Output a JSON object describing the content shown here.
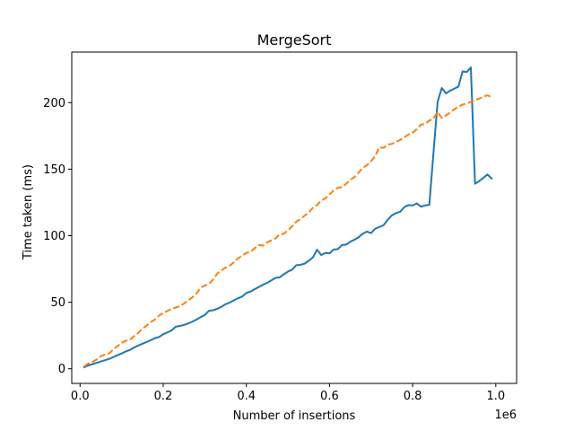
{
  "chart_data": {
    "type": "line",
    "title": "MergeSort",
    "xlabel": "Number of insertions",
    "ylabel": "Time taken (ms)",
    "x_offset_label": "1e6",
    "xlim": [
      -0.02,
      1.05
    ],
    "ylim": [
      -11,
      238
    ],
    "x_ticks": [
      0.0,
      0.2,
      0.4,
      0.6,
      0.8,
      1.0
    ],
    "x_tick_labels": [
      "0.0",
      "0.2",
      "0.4",
      "0.6",
      "0.8",
      "1.0"
    ],
    "y_ticks": [
      0,
      50,
      100,
      150,
      200
    ],
    "y_tick_labels": [
      "0",
      "50",
      "100",
      "150",
      "200"
    ],
    "grid": false,
    "legend": "none",
    "series": [
      {
        "color": "#1f77b4",
        "style": "solid",
        "points": [
          [
            0.01,
            1.2
          ],
          [
            0.02,
            2.5
          ],
          [
            0.03,
            3.5
          ],
          [
            0.04,
            4.5
          ],
          [
            0.05,
            5.5
          ],
          [
            0.06,
            6.4
          ],
          [
            0.07,
            7.4
          ],
          [
            0.08,
            8.8
          ],
          [
            0.09,
            10.2
          ],
          [
            0.1,
            11.5
          ],
          [
            0.11,
            13.0
          ],
          [
            0.12,
            14.2
          ],
          [
            0.13,
            16.0
          ],
          [
            0.14,
            17.5
          ],
          [
            0.15,
            18.8
          ],
          [
            0.16,
            20.1
          ],
          [
            0.17,
            21.5
          ],
          [
            0.18,
            23.0
          ],
          [
            0.19,
            23.9
          ],
          [
            0.2,
            26.0
          ],
          [
            0.21,
            27.3
          ],
          [
            0.22,
            28.8
          ],
          [
            0.23,
            31.6
          ],
          [
            0.24,
            32.2
          ],
          [
            0.25,
            32.9
          ],
          [
            0.26,
            34.1
          ],
          [
            0.27,
            35.4
          ],
          [
            0.28,
            37.0
          ],
          [
            0.29,
            38.8
          ],
          [
            0.3,
            40.4
          ],
          [
            0.31,
            43.6
          ],
          [
            0.32,
            44.0
          ],
          [
            0.33,
            45.0
          ],
          [
            0.34,
            46.6
          ],
          [
            0.35,
            48.5
          ],
          [
            0.36,
            49.8
          ],
          [
            0.37,
            51.4
          ],
          [
            0.38,
            53.0
          ],
          [
            0.39,
            54.3
          ],
          [
            0.4,
            57.0
          ],
          [
            0.41,
            58.0
          ],
          [
            0.42,
            59.8
          ],
          [
            0.43,
            61.5
          ],
          [
            0.44,
            63.1
          ],
          [
            0.45,
            64.6
          ],
          [
            0.46,
            66.4
          ],
          [
            0.47,
            68.3
          ],
          [
            0.48,
            68.7
          ],
          [
            0.49,
            71.0
          ],
          [
            0.5,
            73.0
          ],
          [
            0.51,
            74.5
          ],
          [
            0.52,
            77.8
          ],
          [
            0.53,
            78.1
          ],
          [
            0.54,
            79.0
          ],
          [
            0.55,
            81.2
          ],
          [
            0.56,
            83.7
          ],
          [
            0.57,
            89.5
          ],
          [
            0.58,
            85.5
          ],
          [
            0.59,
            87.0
          ],
          [
            0.6,
            86.8
          ],
          [
            0.61,
            89.6
          ],
          [
            0.62,
            89.9
          ],
          [
            0.63,
            93.0
          ],
          [
            0.64,
            93.3
          ],
          [
            0.65,
            95.5
          ],
          [
            0.66,
            97.0
          ],
          [
            0.67,
            98.8
          ],
          [
            0.68,
            101.5
          ],
          [
            0.69,
            103.1
          ],
          [
            0.7,
            102.0
          ],
          [
            0.71,
            105.3
          ],
          [
            0.72,
            106.5
          ],
          [
            0.73,
            107.9
          ],
          [
            0.74,
            112.0
          ],
          [
            0.75,
            115.3
          ],
          [
            0.76,
            117.0
          ],
          [
            0.77,
            118.0
          ],
          [
            0.78,
            121.5
          ],
          [
            0.79,
            123.0
          ],
          [
            0.8,
            122.8
          ],
          [
            0.81,
            124.3
          ],
          [
            0.82,
            121.8
          ],
          [
            0.83,
            122.8
          ],
          [
            0.84,
            123.2
          ],
          [
            0.85,
            162.0
          ],
          [
            0.86,
            200.5
          ],
          [
            0.87,
            211.0
          ],
          [
            0.88,
            207.0
          ],
          [
            0.89,
            209.0
          ],
          [
            0.9,
            210.5
          ],
          [
            0.91,
            212.0
          ],
          [
            0.92,
            223.5
          ],
          [
            0.93,
            223.0
          ],
          [
            0.94,
            226.5
          ],
          [
            0.95,
            139.0
          ],
          [
            0.96,
            141.0
          ],
          [
            0.97,
            143.5
          ],
          [
            0.98,
            146.0
          ],
          [
            0.99,
            143.0
          ]
        ]
      },
      {
        "color": "#ff7f0e",
        "style": "dashed",
        "points": [
          [
            0.01,
            1.8
          ],
          [
            0.02,
            4.0
          ],
          [
            0.03,
            5.2
          ],
          [
            0.04,
            7.0
          ],
          [
            0.05,
            9.5
          ],
          [
            0.06,
            10.8
          ],
          [
            0.07,
            11.5
          ],
          [
            0.08,
            14.5
          ],
          [
            0.09,
            17.0
          ],
          [
            0.1,
            19.5
          ],
          [
            0.11,
            21.0
          ],
          [
            0.12,
            21.8
          ],
          [
            0.13,
            24.5
          ],
          [
            0.14,
            27.0
          ],
          [
            0.15,
            30.0
          ],
          [
            0.16,
            32.5
          ],
          [
            0.17,
            35.0
          ],
          [
            0.18,
            37.0
          ],
          [
            0.19,
            40.0
          ],
          [
            0.2,
            41.8
          ],
          [
            0.21,
            43.5
          ],
          [
            0.22,
            45.0
          ],
          [
            0.23,
            46.0
          ],
          [
            0.24,
            47.0
          ],
          [
            0.25,
            49.0
          ],
          [
            0.26,
            51.5
          ],
          [
            0.27,
            53.6
          ],
          [
            0.28,
            56.5
          ],
          [
            0.29,
            61.0
          ],
          [
            0.3,
            62.5
          ],
          [
            0.31,
            63.8
          ],
          [
            0.32,
            67.0
          ],
          [
            0.33,
            71.5
          ],
          [
            0.34,
            74.0
          ],
          [
            0.35,
            76.0
          ],
          [
            0.36,
            77.5
          ],
          [
            0.37,
            80.0
          ],
          [
            0.38,
            83.0
          ],
          [
            0.39,
            85.0
          ],
          [
            0.4,
            87.0
          ],
          [
            0.41,
            88.0
          ],
          [
            0.42,
            90.5
          ],
          [
            0.43,
            93.0
          ],
          [
            0.44,
            92.5
          ],
          [
            0.45,
            95.0
          ],
          [
            0.46,
            96.5
          ],
          [
            0.47,
            98.0
          ],
          [
            0.48,
            101.0
          ],
          [
            0.49,
            101.5
          ],
          [
            0.5,
            104.0
          ],
          [
            0.51,
            107.0
          ],
          [
            0.52,
            110.5
          ],
          [
            0.53,
            112.5
          ],
          [
            0.54,
            115.0
          ],
          [
            0.55,
            117.5
          ],
          [
            0.56,
            121.0
          ],
          [
            0.57,
            123.0
          ],
          [
            0.58,
            126.5
          ],
          [
            0.59,
            128.0
          ],
          [
            0.6,
            131.0
          ],
          [
            0.61,
            134.0
          ],
          [
            0.62,
            136.0
          ],
          [
            0.63,
            136.5
          ],
          [
            0.64,
            139.0
          ],
          [
            0.65,
            142.0
          ],
          [
            0.66,
            144.0
          ],
          [
            0.67,
            147.5
          ],
          [
            0.68,
            151.0
          ],
          [
            0.69,
            153.0
          ],
          [
            0.7,
            156.0
          ],
          [
            0.71,
            160.0
          ],
          [
            0.72,
            166.5
          ],
          [
            0.73,
            166.0
          ],
          [
            0.74,
            168.5
          ],
          [
            0.75,
            169.0
          ],
          [
            0.76,
            170.5
          ],
          [
            0.77,
            172.0
          ],
          [
            0.78,
            174.0
          ],
          [
            0.79,
            176.0
          ],
          [
            0.8,
            177.5
          ],
          [
            0.81,
            180.0
          ],
          [
            0.82,
            183.5
          ],
          [
            0.83,
            184.0
          ],
          [
            0.84,
            186.5
          ],
          [
            0.85,
            188.0
          ],
          [
            0.86,
            193.0
          ],
          [
            0.87,
            188.5
          ],
          [
            0.88,
            190.5
          ],
          [
            0.89,
            192.5
          ],
          [
            0.9,
            195.0
          ],
          [
            0.91,
            197.0
          ],
          [
            0.92,
            198.5
          ],
          [
            0.93,
            199.5
          ],
          [
            0.94,
            200.5
          ],
          [
            0.95,
            202.0
          ],
          [
            0.96,
            203.0
          ],
          [
            0.97,
            204.5
          ],
          [
            0.98,
            205.5
          ],
          [
            0.99,
            204.0
          ]
        ]
      }
    ]
  }
}
